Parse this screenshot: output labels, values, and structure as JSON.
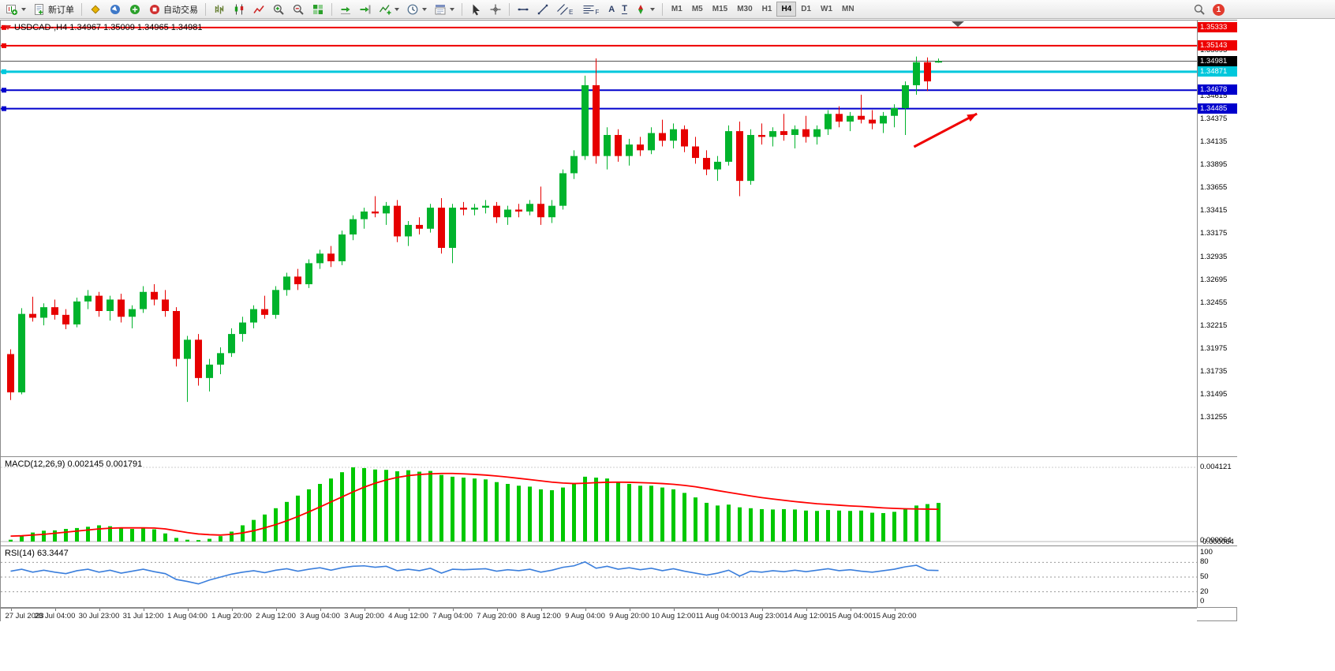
{
  "toolbar": {
    "new_order_label": "新订单",
    "auto_trading_label": "自动交易",
    "timeframes": [
      "M1",
      "M5",
      "M15",
      "M30",
      "H1",
      "H4",
      "D1",
      "W1",
      "MN"
    ],
    "active_timeframe": "H4",
    "notification_count": "1"
  },
  "icons_text": {
    "text_tool": "A",
    "label_tool": "T",
    "channel_suffix": "E",
    "fibo_suffix": "F"
  },
  "colors": {
    "bull": "#00b32c",
    "bear": "#e60000",
    "macd_hist": "#00c800",
    "macd_signal": "#ff0000",
    "rsi_line": "#3a7edc",
    "level_red": "#ee0000",
    "level_cyan": "#00c8dc",
    "level_blue": "#0000cc",
    "arrow": "#f00000"
  },
  "main_chart": {
    "symbol": "USDCAD",
    "period": "H4",
    "title": "USDCAD-,H4 1.34967 1.35009 1.34965 1.34981",
    "ohlc": {
      "open": "1.34967",
      "high": "1.35009",
      "low": "1.34965",
      "close": "1.34981"
    },
    "levels": [
      {
        "value": 1.35333,
        "label": "1.35333",
        "color": "#ee0000",
        "width": 2
      },
      {
        "value": 1.35143,
        "label": "1.35143",
        "color": "#ee0000",
        "width": 2
      },
      {
        "value": 1.34871,
        "label": "1.34871",
        "color": "#00c8dc",
        "width": 3
      },
      {
        "value": 1.34678,
        "label": "1.34678",
        "color": "#0000cc",
        "width": 2
      },
      {
        "value": 1.34485,
        "label": "1.34485",
        "color": "#0000cc",
        "width": 2
      }
    ],
    "current_price": {
      "value": 1.34981,
      "label": "1.34981",
      "color": "#000000"
    },
    "axis_ticks": [
      "1.35095",
      "1.34615",
      "1.34375",
      "1.34135",
      "1.33895",
      "1.33655",
      "1.33415",
      "1.33175",
      "1.32935",
      "1.32695",
      "1.32455",
      "1.32215",
      "1.31975",
      "1.31735",
      "1.31495",
      "1.31255"
    ],
    "annotation_arrow": {
      "color": "#f00000",
      "x1_index": 82.1,
      "y1_price": 1.34086,
      "x2_index": 87.8,
      "y2_price": 1.34432
    }
  },
  "macd_panel": {
    "header": "MACD(12,26,9) 0.002145 0.001791",
    "axis_ticks": [
      {
        "value": 0.004121,
        "label": "0.004121"
      },
      {
        "value": 6.4e-05,
        "label": "0.000064"
      },
      {
        "value": -6.4e-05,
        "label": "-0.000064"
      }
    ]
  },
  "rsi_panel": {
    "header": "RSI(14) 63.3447",
    "axis_ticks": [
      {
        "value": 100,
        "label": "100"
      },
      {
        "value": 80,
        "label": "80"
      },
      {
        "value": 50,
        "label": "50"
      },
      {
        "value": 20,
        "label": "20"
      },
      {
        "value": 0,
        "label": "0"
      }
    ],
    "levels": [
      80,
      50,
      20
    ]
  },
  "chart_data": [
    {
      "type": "candlestick",
      "title": "USDCAD-,H4",
      "ylim": [
        1.30852,
        1.35406
      ],
      "colors": {
        "bull": "#00b32c",
        "bear": "#e60000"
      },
      "x_label_step": 4,
      "x_labels": [
        "27 Jul 2023",
        "28 Jul 04:00",
        "30 Jul 23:00",
        "31 Jul 12:00",
        "1 Aug 04:00",
        "1 Aug 20:00",
        "2 Aug 12:00",
        "3 Aug 04:00",
        "3 Aug 20:00",
        "4 Aug 12:00",
        "7 Aug 04:00",
        "7 Aug 20:00",
        "8 Aug 12:00",
        "9 Aug 04:00",
        "9 Aug 20:00",
        "10 Aug 12:00",
        "11 Aug 04:00",
        "13 Aug 23:00",
        "14 Aug 12:00",
        "15 Aug 04:00",
        "15 Aug 20:00"
      ],
      "candles": [
        [
          1.3192,
          1.3197,
          1.3144,
          1.3152
        ],
        [
          1.3152,
          1.324,
          1.315,
          1.3234
        ],
        [
          1.3234,
          1.3252,
          1.3226,
          1.323
        ],
        [
          1.323,
          1.3245,
          1.3222,
          1.3241
        ],
        [
          1.3241,
          1.3249,
          1.3228,
          1.3233
        ],
        [
          1.3233,
          1.3239,
          1.3218,
          1.3223
        ],
        [
          1.3223,
          1.3251,
          1.322,
          1.3247
        ],
        [
          1.3247,
          1.3259,
          1.3239,
          1.3253
        ],
        [
          1.3253,
          1.3257,
          1.3231,
          1.3237
        ],
        [
          1.3237,
          1.3253,
          1.3227,
          1.3249
        ],
        [
          1.3249,
          1.3255,
          1.3225,
          1.3231
        ],
        [
          1.3231,
          1.3243,
          1.3219,
          1.3239
        ],
        [
          1.3239,
          1.3263,
          1.3235,
          1.3257
        ],
        [
          1.3257,
          1.3265,
          1.3243,
          1.3249
        ],
        [
          1.3249,
          1.3259,
          1.3231,
          1.3237
        ],
        [
          1.3237,
          1.3241,
          1.3179,
          1.3187
        ],
        [
          1.3187,
          1.3211,
          1.3142,
          1.3207
        ],
        [
          1.3207,
          1.3213,
          1.3159,
          1.3167
        ],
        [
          1.3167,
          1.3187,
          1.3153,
          1.3181
        ],
        [
          1.3181,
          1.3199,
          1.3171,
          1.3193
        ],
        [
          1.3193,
          1.3219,
          1.3189,
          1.3213
        ],
        [
          1.3213,
          1.3231,
          1.3205,
          1.3225
        ],
        [
          1.3225,
          1.3243,
          1.3219,
          1.3239
        ],
        [
          1.3239,
          1.3253,
          1.3229,
          1.3233
        ],
        [
          1.3233,
          1.3263,
          1.3229,
          1.3259
        ],
        [
          1.3259,
          1.3277,
          1.3253,
          1.3273
        ],
        [
          1.3273,
          1.3281,
          1.3259,
          1.3265
        ],
        [
          1.3265,
          1.3291,
          1.3261,
          1.3287
        ],
        [
          1.3287,
          1.3301,
          1.3281,
          1.3297
        ],
        [
          1.3297,
          1.3305,
          1.3283,
          1.3289
        ],
        [
          1.3289,
          1.3321,
          1.3285,
          1.3317
        ],
        [
          1.3317,
          1.3337,
          1.3311,
          1.3333
        ],
        [
          1.3333,
          1.3345,
          1.3323,
          1.3341
        ],
        [
          1.3341,
          1.3357,
          1.3335,
          1.3339
        ],
        [
          1.3339,
          1.3351,
          1.3327,
          1.3347
        ],
        [
          1.3347,
          1.3353,
          1.3309,
          1.3315
        ],
        [
          1.3315,
          1.3331,
          1.3305,
          1.3327
        ],
        [
          1.3327,
          1.3335,
          1.3317,
          1.3323
        ],
        [
          1.3323,
          1.3349,
          1.3319,
          1.3345
        ],
        [
          1.3345,
          1.3355,
          1.3297,
          1.3303
        ],
        [
          1.3303,
          1.3349,
          1.3287,
          1.3345
        ],
        [
          1.3345,
          1.3351,
          1.3337,
          1.3343
        ],
        [
          1.3343,
          1.3349,
          1.3337,
          1.3345
        ],
        [
          1.3345,
          1.3353,
          1.3339,
          1.3347
        ],
        [
          1.3347,
          1.3351,
          1.3329,
          1.3335
        ],
        [
          1.3335,
          1.3347,
          1.3327,
          1.3343
        ],
        [
          1.3343,
          1.3349,
          1.3335,
          1.3341
        ],
        [
          1.3341,
          1.3353,
          1.3337,
          1.3349
        ],
        [
          1.3349,
          1.3367,
          1.3327,
          1.3335
        ],
        [
          1.3335,
          1.3353,
          1.3329,
          1.3347
        ],
        [
          1.3347,
          1.3385,
          1.3343,
          1.3381
        ],
        [
          1.3381,
          1.3405,
          1.3375,
          1.3399
        ],
        [
          1.3399,
          1.3483,
          1.3395,
          1.3473
        ],
        [
          1.3473,
          1.3501,
          1.3391,
          1.3399
        ],
        [
          1.3399,
          1.3429,
          1.3385,
          1.3421
        ],
        [
          1.3421,
          1.3427,
          1.3393,
          1.3399
        ],
        [
          1.3399,
          1.3417,
          1.3389,
          1.3411
        ],
        [
          1.3411,
          1.3419,
          1.3399,
          1.3405
        ],
        [
          1.3405,
          1.3429,
          1.3401,
          1.3423
        ],
        [
          1.3423,
          1.3437,
          1.3409,
          1.3415
        ],
        [
          1.3415,
          1.3433,
          1.3407,
          1.3427
        ],
        [
          1.3427,
          1.3431,
          1.3403,
          1.3409
        ],
        [
          1.3409,
          1.3419,
          1.3391,
          1.3397
        ],
        [
          1.3397,
          1.3405,
          1.3379,
          1.3385
        ],
        [
          1.3385,
          1.3399,
          1.3373,
          1.3393
        ],
        [
          1.3393,
          1.3431,
          1.3389,
          1.3425
        ],
        [
          1.3425,
          1.3435,
          1.3357,
          1.3373
        ],
        [
          1.3373,
          1.3427,
          1.3369,
          1.3421
        ],
        [
          1.3421,
          1.3433,
          1.3411,
          1.3419
        ],
        [
          1.3419,
          1.3429,
          1.3409,
          1.3425
        ],
        [
          1.3425,
          1.3443,
          1.3415,
          1.3421
        ],
        [
          1.3421,
          1.3431,
          1.3407,
          1.3427
        ],
        [
          1.3427,
          1.3441,
          1.3413,
          1.3419
        ],
        [
          1.3419,
          1.3431,
          1.3411,
          1.3427
        ],
        [
          1.3427,
          1.3447,
          1.3421,
          1.3443
        ],
        [
          1.3443,
          1.3451,
          1.3429,
          1.3435
        ],
        [
          1.3435,
          1.3445,
          1.3425,
          1.3441
        ],
        [
          1.3441,
          1.3463,
          1.3433,
          1.3437
        ],
        [
          1.3437,
          1.3447,
          1.3427,
          1.3433
        ],
        [
          1.3433,
          1.3445,
          1.3423,
          1.3441
        ],
        [
          1.3441,
          1.3453,
          1.3429,
          1.3449
        ],
        [
          1.3449,
          1.3477,
          1.3421,
          1.3473
        ],
        [
          1.3473,
          1.3503,
          1.3463,
          1.3497
        ],
        [
          1.3497,
          1.3502,
          1.3467,
          1.3477
        ],
        [
          1.34967,
          1.35009,
          1.34965,
          1.34981
        ]
      ]
    },
    {
      "type": "bar",
      "title": "MACD(12,26,9)",
      "current_macd": 0.002145,
      "current_signal": 0.001791,
      "colors": {
        "hist": "#00c800",
        "signal": "#ff0000"
      },
      "values": [
        0.0001,
        0.0003,
        0.0005,
        0.0006,
        0.00062,
        0.0007,
        0.00075,
        0.00082,
        0.0009,
        0.00085,
        0.00075,
        0.0007,
        0.00078,
        0.00068,
        0.00045,
        0.0002,
        0.0001,
        8e-05,
        0.00015,
        0.0003,
        0.00055,
        0.0009,
        0.0012,
        0.0015,
        0.00185,
        0.0022,
        0.00255,
        0.0029,
        0.0032,
        0.0035,
        0.00385,
        0.00412,
        0.00408,
        0.004,
        0.00398,
        0.0039,
        0.00396,
        0.00388,
        0.00392,
        0.0037,
        0.0036,
        0.00355,
        0.0035,
        0.00345,
        0.0033,
        0.0032,
        0.0031,
        0.00305,
        0.0029,
        0.00285,
        0.003,
        0.0032,
        0.0036,
        0.00355,
        0.0035,
        0.0033,
        0.0032,
        0.0031,
        0.0031,
        0.003,
        0.0029,
        0.0027,
        0.00245,
        0.00215,
        0.002,
        0.00205,
        0.0019,
        0.00185,
        0.0018,
        0.00178,
        0.0018,
        0.00178,
        0.00172,
        0.0017,
        0.00175,
        0.00172,
        0.0017,
        0.00172,
        0.0016,
        0.00158,
        0.00165,
        0.0018,
        0.002,
        0.00208,
        0.002145
      ],
      "signal": [
        0.0003,
        0.00032,
        0.00036,
        0.0004,
        0.00046,
        0.00052,
        0.00058,
        0.00064,
        0.0007,
        0.00074,
        0.00076,
        0.00076,
        0.00076,
        0.00075,
        0.0007,
        0.0006,
        0.0005,
        0.00042,
        0.00038,
        0.00036,
        0.0004,
        0.00048,
        0.0006,
        0.00076,
        0.00094,
        0.00115,
        0.00139,
        0.00165,
        0.00192,
        0.0022,
        0.00248,
        0.00276,
        0.00302,
        0.00324,
        0.00342,
        0.00356,
        0.00366,
        0.00372,
        0.00376,
        0.00378,
        0.00378,
        0.00376,
        0.00373,
        0.00369,
        0.00364,
        0.00358,
        0.00351,
        0.00344,
        0.00337,
        0.0033,
        0.00325,
        0.00322,
        0.00324,
        0.00327,
        0.00329,
        0.0033,
        0.00329,
        0.00327,
        0.00325,
        0.00322,
        0.00318,
        0.00312,
        0.00304,
        0.00294,
        0.00283,
        0.00273,
        0.00263,
        0.00253,
        0.00244,
        0.00236,
        0.00229,
        0.00222,
        0.00216,
        0.0021,
        0.00206,
        0.00202,
        0.00198,
        0.00195,
        0.00191,
        0.00187,
        0.00184,
        0.00182,
        0.00181,
        0.0018,
        0.001791
      ]
    },
    {
      "type": "line",
      "title": "RSI(14)",
      "current": 63.3447,
      "color": "#3a7edc",
      "values": [
        62,
        66,
        60,
        64,
        60,
        57,
        63,
        66,
        60,
        64,
        58,
        62,
        66,
        61,
        57,
        45,
        41,
        36,
        44,
        50,
        56,
        60,
        63,
        59,
        64,
        67,
        62,
        66,
        69,
        64,
        69,
        72,
        73,
        70,
        72,
        63,
        66,
        63,
        68,
        58,
        66,
        65,
        66,
        67,
        62,
        65,
        63,
        66,
        60,
        64,
        70,
        73,
        81,
        68,
        72,
        66,
        69,
        65,
        68,
        63,
        67,
        62,
        58,
        54,
        58,
        64,
        52,
        62,
        60,
        63,
        61,
        64,
        61,
        64,
        67,
        63,
        65,
        62,
        60,
        63,
        66,
        71,
        74,
        64,
        63.3447
      ]
    }
  ]
}
